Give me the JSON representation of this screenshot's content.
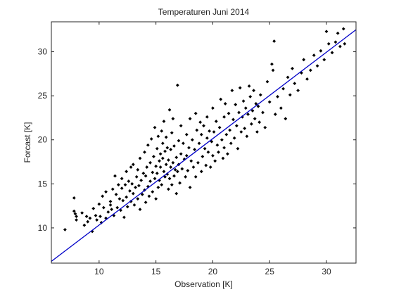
{
  "chart_data": {
    "type": "scatter",
    "title": "Temperaturen Juni 2014",
    "xlabel": "Observation [K]",
    "ylabel": "Forcast [K]",
    "xlim": [
      5.8,
      32.6
    ],
    "ylim": [
      6.0,
      33.4
    ],
    "xticks": [
      10,
      15,
      20,
      25,
      30
    ],
    "yticks": [
      10,
      15,
      20,
      25,
      30
    ],
    "grid": false,
    "legend": "none",
    "colors": {
      "markers": "#000000",
      "fit_line": "#0000c8",
      "axes": "#262626"
    },
    "fit_line": {
      "x": [
        5.8,
        32.6
      ],
      "y": [
        6.2,
        32.5
      ]
    },
    "series": [
      {
        "marker": "diamond",
        "points": [
          [
            7.0,
            9.8
          ],
          [
            7.8,
            13.4
          ],
          [
            7.8,
            11.9
          ],
          [
            7.9,
            11.6
          ],
          [
            8.0,
            10.9
          ],
          [
            8.0,
            11.3
          ],
          [
            8.5,
            11.7
          ],
          [
            8.7,
            10.3
          ],
          [
            8.9,
            11.3
          ],
          [
            9.0,
            10.7
          ],
          [
            9.2,
            11.1
          ],
          [
            9.4,
            9.6
          ],
          [
            9.5,
            12.2
          ],
          [
            9.7,
            11.4
          ],
          [
            9.8,
            10.9
          ],
          [
            10.0,
            12.7
          ],
          [
            10.1,
            11.3
          ],
          [
            10.2,
            10.6
          ],
          [
            10.3,
            13.6
          ],
          [
            10.4,
            12.3
          ],
          [
            10.6,
            11.1
          ],
          [
            10.6,
            14.1
          ],
          [
            10.8,
            11.8
          ],
          [
            11.0,
            12.6
          ],
          [
            11.0,
            13.0
          ],
          [
            11.1,
            12.1
          ],
          [
            11.2,
            14.4
          ],
          [
            11.3,
            11.4
          ],
          [
            11.4,
            15.9
          ],
          [
            11.5,
            13.8
          ],
          [
            11.6,
            12.3
          ],
          [
            11.7,
            14.9
          ],
          [
            11.8,
            13.3
          ],
          [
            11.9,
            12.0
          ],
          [
            12.0,
            15.6
          ],
          [
            12.0,
            14.5
          ],
          [
            12.1,
            13.1
          ],
          [
            12.2,
            11.2
          ],
          [
            12.3,
            14.9
          ],
          [
            12.4,
            16.4
          ],
          [
            12.4,
            13.5
          ],
          [
            12.5,
            12.4
          ],
          [
            12.6,
            15.3
          ],
          [
            12.7,
            14.2
          ],
          [
            12.8,
            16.9
          ],
          [
            12.8,
            13.0
          ],
          [
            12.9,
            15.0
          ],
          [
            13.0,
            13.9
          ],
          [
            13.0,
            17.2
          ],
          [
            13.1,
            12.6
          ],
          [
            13.2,
            14.6
          ],
          [
            13.3,
            15.8
          ],
          [
            13.4,
            13.3
          ],
          [
            13.4,
            16.6
          ],
          [
            13.5,
            14.8
          ],
          [
            13.6,
            12.1
          ],
          [
            13.6,
            17.9
          ],
          [
            13.7,
            15.4
          ],
          [
            13.8,
            13.8
          ],
          [
            13.9,
            16.2
          ],
          [
            14.0,
            14.3
          ],
          [
            14.0,
            18.6
          ],
          [
            14.1,
            15.9
          ],
          [
            14.1,
            12.9
          ],
          [
            14.2,
            16.9
          ],
          [
            14.3,
            14.7
          ],
          [
            14.3,
            19.4
          ],
          [
            14.4,
            13.6
          ],
          [
            14.5,
            17.4
          ],
          [
            14.5,
            15.3
          ],
          [
            14.6,
            20.1
          ],
          [
            14.7,
            16.3
          ],
          [
            14.7,
            14.1
          ],
          [
            14.8,
            18.1
          ],
          [
            14.9,
            15.6
          ],
          [
            14.9,
            21.4
          ],
          [
            15.0,
            17.0
          ],
          [
            15.0,
            13.3
          ],
          [
            15.1,
            19.0
          ],
          [
            15.1,
            16.2
          ],
          [
            15.2,
            14.6
          ],
          [
            15.2,
            20.4
          ],
          [
            15.3,
            17.6
          ],
          [
            15.3,
            15.4
          ],
          [
            15.4,
            18.4
          ],
          [
            15.4,
            16.9
          ],
          [
            15.5,
            21.0
          ],
          [
            15.5,
            14.9
          ],
          [
            15.6,
            17.9
          ],
          [
            15.6,
            19.6
          ],
          [
            15.7,
            16.4
          ],
          [
            15.7,
            22.1
          ],
          [
            15.8,
            15.8
          ],
          [
            15.8,
            18.7
          ],
          [
            15.9,
            17.2
          ],
          [
            15.9,
            20.3
          ],
          [
            16.0,
            16.1
          ],
          [
            16.0,
            19.1
          ],
          [
            16.1,
            14.4
          ],
          [
            16.1,
            17.7
          ],
          [
            16.2,
            23.4
          ],
          [
            16.2,
            15.6
          ],
          [
            16.3,
            18.9
          ],
          [
            16.3,
            16.9
          ],
          [
            16.4,
            20.8
          ],
          [
            16.4,
            14.9
          ],
          [
            16.5,
            17.4
          ],
          [
            16.5,
            22.4
          ],
          [
            16.6,
            15.9
          ],
          [
            16.6,
            19.3
          ],
          [
            16.7,
            16.6
          ],
          [
            16.8,
            18.0
          ],
          [
            16.8,
            13.9
          ],
          [
            16.9,
            26.2
          ],
          [
            16.9,
            16.4
          ],
          [
            17.0,
            19.9
          ],
          [
            17.0,
            17.2
          ],
          [
            17.1,
            15.1
          ],
          [
            17.2,
            21.6
          ],
          [
            17.2,
            18.4
          ],
          [
            17.3,
            16.7
          ],
          [
            17.4,
            19.6
          ],
          [
            17.5,
            17.8
          ],
          [
            17.6,
            15.8
          ],
          [
            17.7,
            20.6
          ],
          [
            17.7,
            18.2
          ],
          [
            17.8,
            16.5
          ],
          [
            17.9,
            19.1
          ],
          [
            18.0,
            14.6
          ],
          [
            18.0,
            22.4
          ],
          [
            18.1,
            17.6
          ],
          [
            18.2,
            20.0
          ],
          [
            18.3,
            16.9
          ],
          [
            18.4,
            18.9
          ],
          [
            18.5,
            23.0
          ],
          [
            18.5,
            15.8
          ],
          [
            18.6,
            21.1
          ],
          [
            18.7,
            17.4
          ],
          [
            18.8,
            19.6
          ],
          [
            18.9,
            22.0
          ],
          [
            19.0,
            16.4
          ],
          [
            19.0,
            20.6
          ],
          [
            19.1,
            18.1
          ],
          [
            19.2,
            21.6
          ],
          [
            19.3,
            19.0
          ],
          [
            19.4,
            17.1
          ],
          [
            19.5,
            20.2
          ],
          [
            19.5,
            22.6
          ],
          [
            19.6,
            18.6
          ],
          [
            19.7,
            21.0
          ],
          [
            19.8,
            16.9
          ],
          [
            19.9,
            19.8
          ],
          [
            20.0,
            23.6
          ],
          [
            20.0,
            18.2
          ],
          [
            20.1,
            20.9
          ],
          [
            20.2,
            17.6
          ],
          [
            20.3,
            22.1
          ],
          [
            20.4,
            19.4
          ],
          [
            20.5,
            18.6
          ],
          [
            20.6,
            21.4
          ],
          [
            20.7,
            24.6
          ],
          [
            20.8,
            20.0
          ],
          [
            20.9,
            17.9
          ],
          [
            21.0,
            22.6
          ],
          [
            21.0,
            19.1
          ],
          [
            21.1,
            24.1
          ],
          [
            21.2,
            20.6
          ],
          [
            21.3,
            18.4
          ],
          [
            21.4,
            23.0
          ],
          [
            21.5,
            21.1
          ],
          [
            21.6,
            19.6
          ],
          [
            21.7,
            25.6
          ],
          [
            21.8,
            22.3
          ],
          [
            21.9,
            20.2
          ],
          [
            22.0,
            24.0
          ],
          [
            22.1,
            21.6
          ],
          [
            22.2,
            19.0
          ],
          [
            22.3,
            23.1
          ],
          [
            22.4,
            25.9
          ],
          [
            22.5,
            20.9
          ],
          [
            22.6,
            22.6
          ],
          [
            22.7,
            24.4
          ],
          [
            22.8,
            21.3
          ],
          [
            22.9,
            23.6
          ],
          [
            23.0,
            20.4
          ],
          [
            23.1,
            22.9
          ],
          [
            23.2,
            26.1
          ],
          [
            23.3,
            24.9
          ],
          [
            23.4,
            21.8
          ],
          [
            23.5,
            23.3
          ],
          [
            23.6,
            25.6
          ],
          [
            23.7,
            22.4
          ],
          [
            23.8,
            24.1
          ],
          [
            23.9,
            20.9
          ],
          [
            24.0,
            23.8
          ],
          [
            24.1,
            22.0
          ],
          [
            24.2,
            25.1
          ],
          [
            24.4,
            23.1
          ],
          [
            24.6,
            21.4
          ],
          [
            24.8,
            26.6
          ],
          [
            25.0,
            24.3
          ],
          [
            25.2,
            28.6
          ],
          [
            25.3,
            27.9
          ],
          [
            25.4,
            31.2
          ],
          [
            25.5,
            22.9
          ],
          [
            25.7,
            24.9
          ],
          [
            26.0,
            23.6
          ],
          [
            26.2,
            25.8
          ],
          [
            26.4,
            22.4
          ],
          [
            26.6,
            27.1
          ],
          [
            26.8,
            25.1
          ],
          [
            27.0,
            28.1
          ],
          [
            27.2,
            26.4
          ],
          [
            27.5,
            25.6
          ],
          [
            27.8,
            27.6
          ],
          [
            28.0,
            29.1
          ],
          [
            28.3,
            26.9
          ],
          [
            28.6,
            27.9
          ],
          [
            28.9,
            29.6
          ],
          [
            29.2,
            28.4
          ],
          [
            29.5,
            30.1
          ],
          [
            29.8,
            29.1
          ],
          [
            30.0,
            32.3
          ],
          [
            30.2,
            30.9
          ],
          [
            30.5,
            29.9
          ],
          [
            30.8,
            31.1
          ],
          [
            31.0,
            32.1
          ],
          [
            31.2,
            30.6
          ],
          [
            31.5,
            32.6
          ],
          [
            31.6,
            30.9
          ]
        ]
      }
    ]
  }
}
